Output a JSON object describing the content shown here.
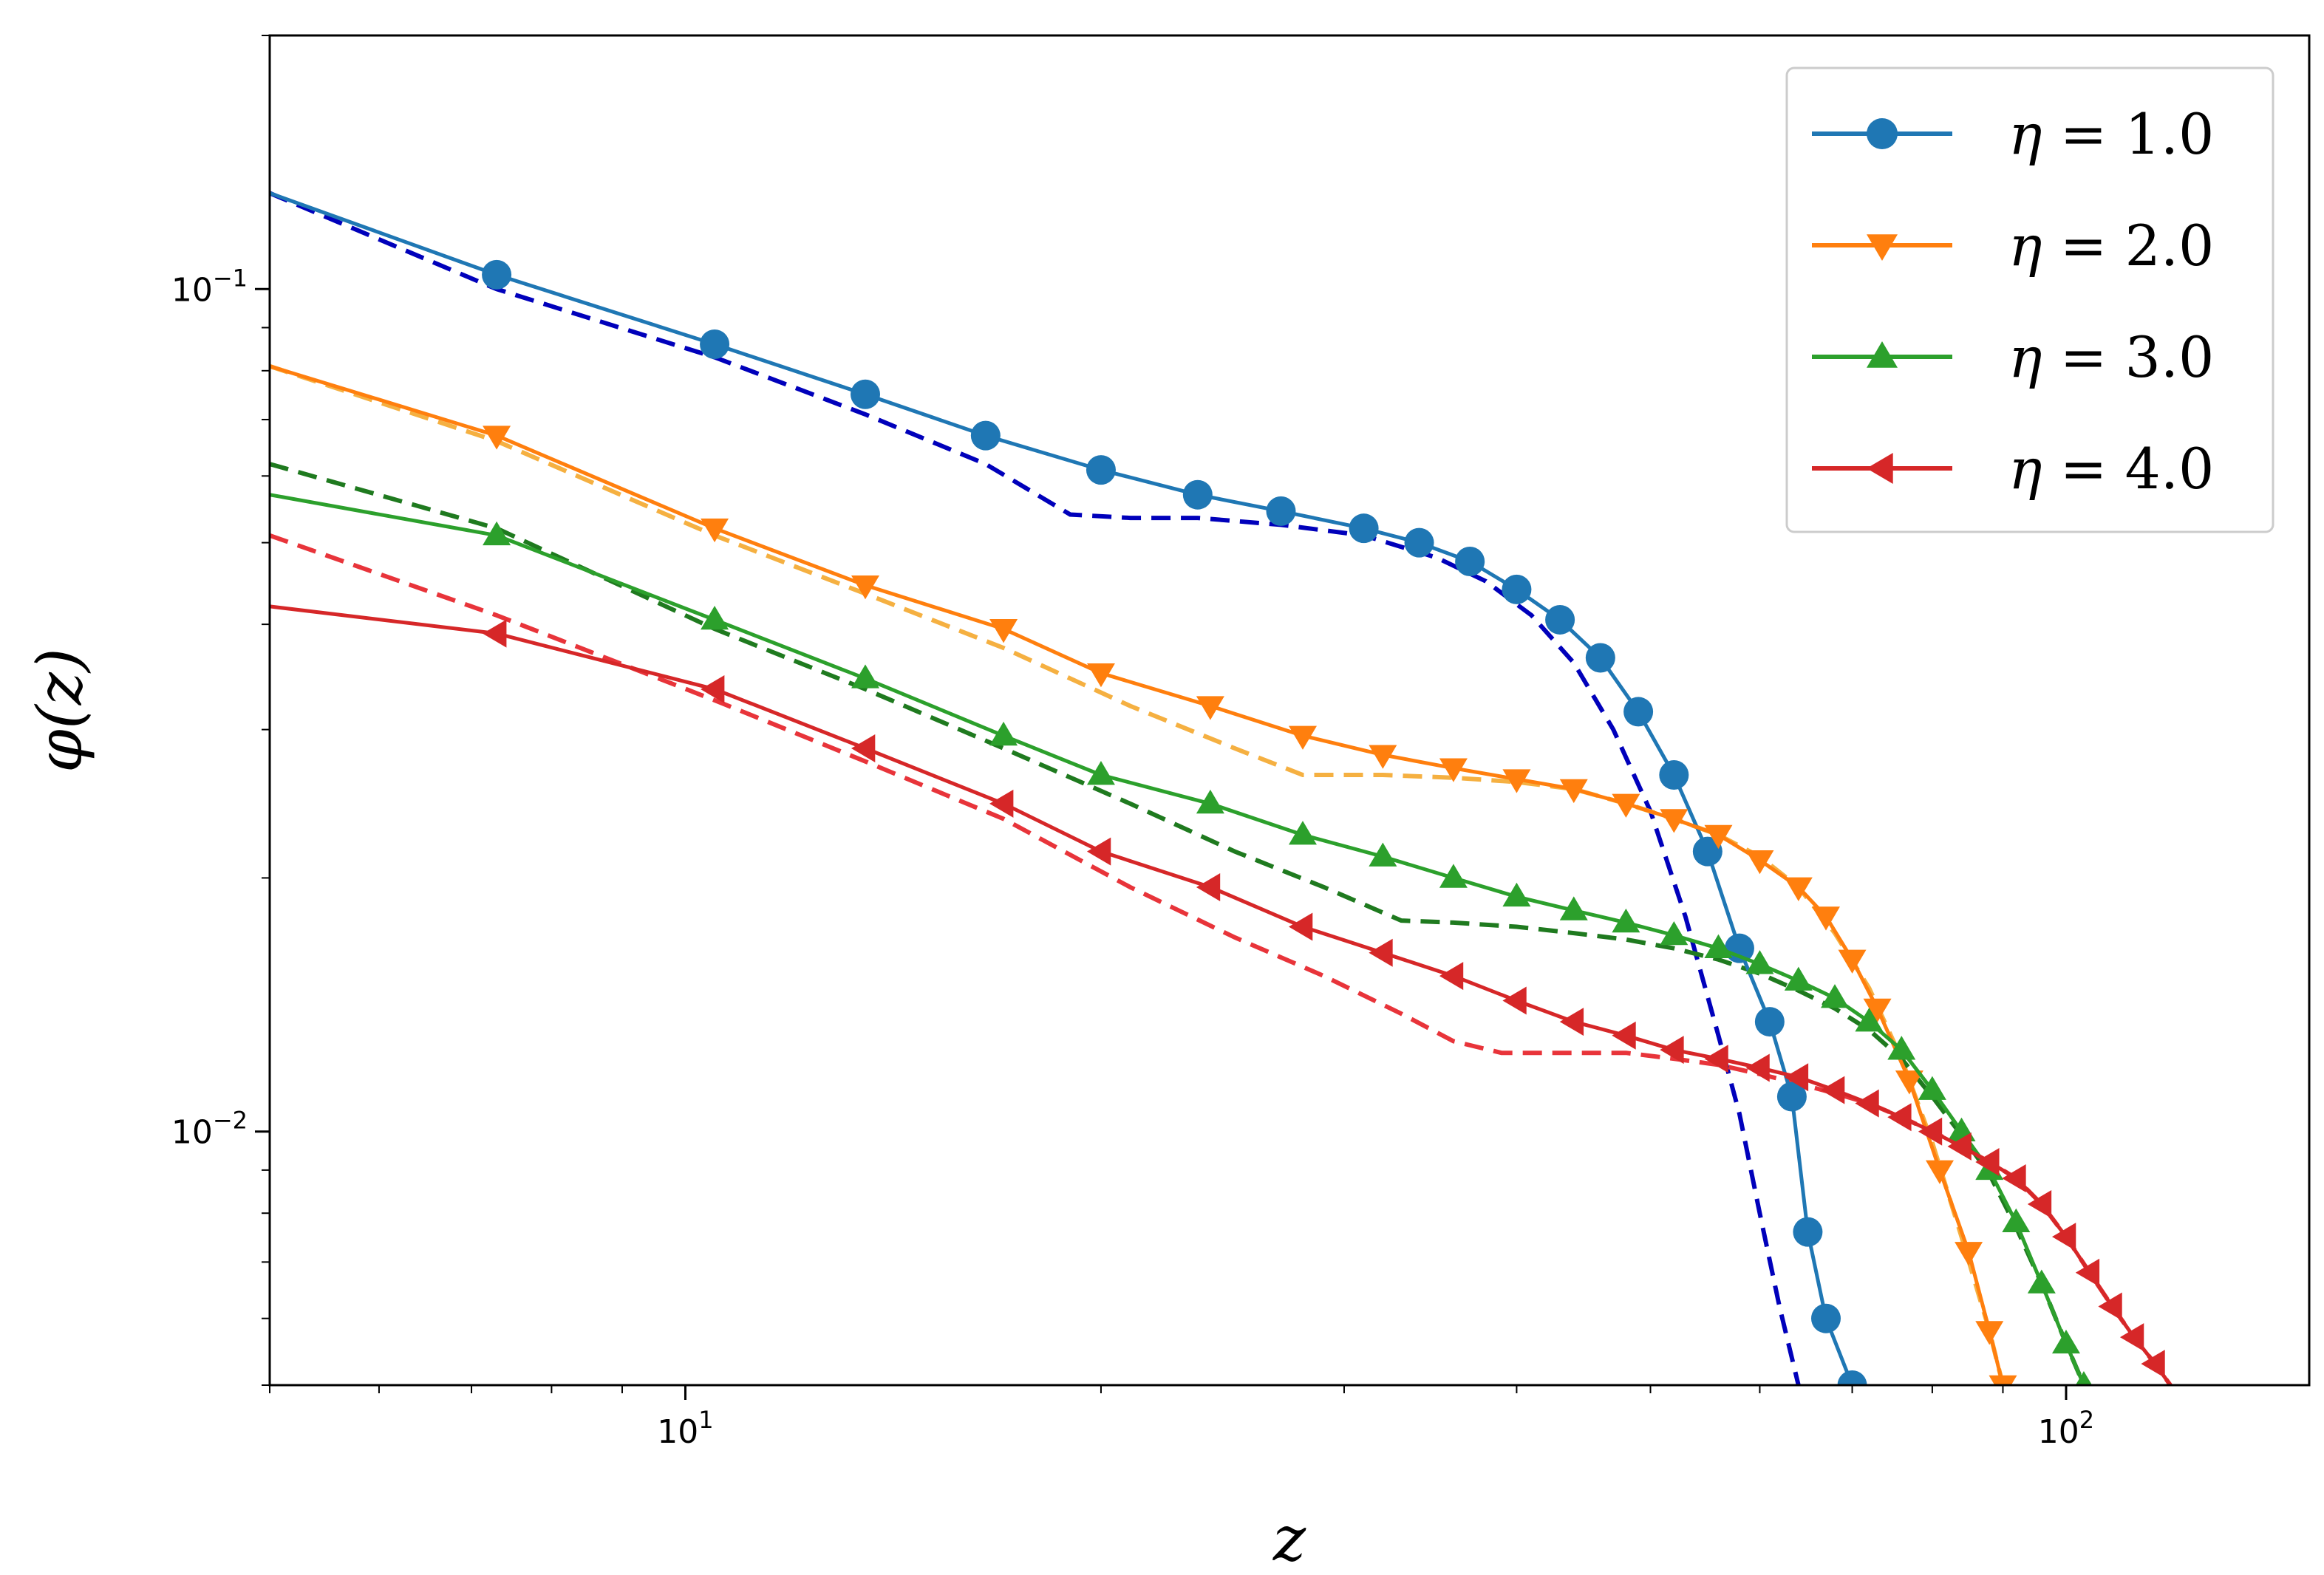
{
  "chart_data": {
    "type": "line",
    "xlabel": "z",
    "ylabel": "φ(z)",
    "xscale": "log",
    "yscale": "log",
    "xlim": [
      5.0,
      150
    ],
    "ylim": [
      0.005,
      0.2
    ],
    "x_major_ticks": [
      {
        "value": 10,
        "base": "10",
        "exp": "1"
      },
      {
        "value": 100,
        "base": "10",
        "exp": "2"
      }
    ],
    "y_major_ticks": [
      {
        "value": 0.1,
        "base": "10",
        "exp": "−1"
      },
      {
        "value": 0.01,
        "base": "10",
        "exp": "−2"
      }
    ],
    "grid": false,
    "legend": {
      "position": "top-right"
    },
    "series": [
      {
        "name": "η = 1.0",
        "greek": "η",
        "value": "1.0",
        "color": "#1f77b4",
        "marker": "circle",
        "x": [
          5.0,
          7.3,
          10.5,
          13.5,
          16.5,
          20,
          23.5,
          27,
          31,
          34,
          37,
          40,
          43,
          46,
          49,
          52,
          55,
          58,
          61,
          63.3,
          65,
          67,
          70
        ],
        "y": [
          0.13,
          0.104,
          0.086,
          0.075,
          0.067,
          0.061,
          0.057,
          0.0545,
          0.052,
          0.05,
          0.0475,
          0.044,
          0.0405,
          0.0365,
          0.0315,
          0.0265,
          0.0215,
          0.0165,
          0.0135,
          0.011,
          0.0076,
          0.006,
          0.005
        ]
      },
      {
        "name": "η = 2.0",
        "greek": "η",
        "value": "2.0",
        "color": "#ff7f0e",
        "marker": "triangle-down",
        "x": [
          5.0,
          7.3,
          10.5,
          13.5,
          17,
          20,
          24,
          28,
          32,
          36,
          40,
          44,
          48,
          52,
          56,
          60,
          64,
          67,
          70,
          73,
          77,
          81,
          85,
          88,
          90
        ],
        "y": [
          0.081,
          0.067,
          0.052,
          0.0445,
          0.0395,
          0.035,
          0.032,
          0.0295,
          0.028,
          0.027,
          0.0262,
          0.0255,
          0.0245,
          0.0235,
          0.0225,
          0.021,
          0.0195,
          0.018,
          0.016,
          0.014,
          0.0115,
          0.009,
          0.0072,
          0.0058,
          0.005
        ]
      },
      {
        "name": "η = 3.0",
        "greek": "η",
        "value": "3.0",
        "color": "#2ca02c",
        "marker": "triangle-up",
        "x": [
          5.0,
          7.3,
          10.5,
          13.5,
          17,
          20,
          24,
          28,
          32,
          36,
          40,
          44,
          48,
          52,
          56,
          60,
          64,
          68,
          72,
          76,
          80,
          84,
          88,
          92,
          96,
          100,
          103
        ],
        "y": [
          0.057,
          0.051,
          0.0405,
          0.0345,
          0.0295,
          0.0265,
          0.0245,
          0.0225,
          0.0212,
          0.02,
          0.019,
          0.0183,
          0.0177,
          0.0171,
          0.0165,
          0.0158,
          0.0151,
          0.0144,
          0.0135,
          0.0125,
          0.0112,
          0.01,
          0.009,
          0.0078,
          0.0066,
          0.0056,
          0.005
        ]
      },
      {
        "name": "η = 4.0",
        "greek": "η",
        "value": "4.0",
        "color": "#d62728",
        "marker": "triangle-left",
        "x": [
          5.0,
          7.3,
          10.5,
          13.5,
          17,
          20,
          24,
          28,
          32,
          36,
          40,
          44,
          48,
          52,
          56,
          60,
          64,
          68,
          72,
          76,
          80,
          84,
          88,
          92,
          96,
          100,
          104,
          108,
          112,
          116,
          119
        ],
        "y": [
          0.042,
          0.039,
          0.0335,
          0.0285,
          0.0245,
          0.0215,
          0.0195,
          0.0175,
          0.0163,
          0.0153,
          0.0143,
          0.0135,
          0.013,
          0.0125,
          0.0122,
          0.0119,
          0.0116,
          0.0112,
          0.0108,
          0.0104,
          0.01,
          0.0096,
          0.0092,
          0.0088,
          0.0082,
          0.0075,
          0.0068,
          0.0062,
          0.0057,
          0.0053,
          0.005
        ]
      }
    ],
    "reference_curves": [
      {
        "color": "#0000bb",
        "style": "dashed",
        "x": [
          5.0,
          7.3,
          10.5,
          13.5,
          16.5,
          19,
          21,
          23.5,
          27,
          31,
          35,
          38,
          41,
          44,
          47,
          50,
          53,
          56,
          58,
          60,
          62,
          64
        ],
        "y": [
          0.13,
          0.1,
          0.083,
          0.071,
          0.062,
          0.054,
          0.0535,
          0.0535,
          0.0525,
          0.051,
          0.048,
          0.045,
          0.041,
          0.036,
          0.03,
          0.024,
          0.018,
          0.013,
          0.0105,
          0.008,
          0.0062,
          0.005
        ]
      },
      {
        "color": "#f5b041",
        "style": "dashed",
        "x": [
          5.0,
          7.3,
          10.5,
          13.5,
          17,
          21,
          25,
          28,
          32,
          36,
          40,
          44,
          48,
          52,
          56,
          60,
          64,
          68,
          72,
          76,
          80,
          84,
          88,
          90
        ],
        "y": [
          0.081,
          0.066,
          0.051,
          0.0435,
          0.0375,
          0.032,
          0.0285,
          0.0265,
          0.0265,
          0.0263,
          0.026,
          0.0255,
          0.0245,
          0.0235,
          0.0225,
          0.0212,
          0.0195,
          0.0172,
          0.0148,
          0.0122,
          0.0097,
          0.0075,
          0.0058,
          0.005
        ]
      },
      {
        "color": "#1f7a1f",
        "style": "dashed",
        "x": [
          5.0,
          7.3,
          10.5,
          13.5,
          17,
          21,
          25,
          29,
          33,
          36,
          40,
          44,
          48,
          52,
          56,
          60,
          64,
          68,
          72,
          76,
          80,
          84,
          88,
          92,
          96,
          100,
          103
        ],
        "y": [
          0.062,
          0.052,
          0.0395,
          0.0335,
          0.0285,
          0.0245,
          0.0215,
          0.0195,
          0.0178,
          0.0177,
          0.0175,
          0.0172,
          0.0169,
          0.0165,
          0.016,
          0.0154,
          0.0147,
          0.014,
          0.0132,
          0.0122,
          0.011,
          0.0099,
          0.0089,
          0.0077,
          0.0066,
          0.0056,
          0.005
        ]
      },
      {
        "color": "#e8343a",
        "style": "dashed",
        "x": [
          5.0,
          7.3,
          10.5,
          13.5,
          17,
          21,
          25,
          29,
          33,
          36,
          39,
          44,
          48,
          52,
          56,
          60,
          64,
          68,
          72,
          76,
          80,
          84,
          88,
          92,
          96,
          100,
          104,
          108,
          112,
          116,
          119
        ],
        "y": [
          0.051,
          0.041,
          0.0325,
          0.0275,
          0.0235,
          0.0195,
          0.017,
          0.0153,
          0.0138,
          0.0128,
          0.0124,
          0.0124,
          0.0124,
          0.0122,
          0.012,
          0.0117,
          0.0114,
          0.0111,
          0.0108,
          0.0104,
          0.01,
          0.0096,
          0.0092,
          0.0088,
          0.0082,
          0.0075,
          0.0068,
          0.0062,
          0.0057,
          0.0053,
          0.005
        ]
      }
    ]
  }
}
